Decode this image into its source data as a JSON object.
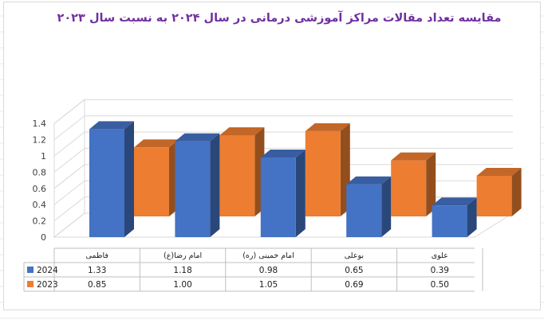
{
  "chart_data": {
    "type": "bar",
    "style": "3d-clustered-column",
    "title": "مقایسه تعداد مقالات مراکز آموزشی درمانی در سال ۲۰۲۴ به نسبت سال ۲۰۲۳",
    "categories": [
      "فاطمی",
      "امام رضا(ع)",
      "امام خمینی (ره)",
      "بوعلی",
      "علوی"
    ],
    "series": [
      {
        "name": "2024",
        "values": [
          "1.33",
          "1.18",
          "0.98",
          "0.65",
          "0.39"
        ],
        "color": "#4472c4"
      },
      {
        "name": "2023",
        "values": [
          "0.85",
          "1.00",
          "1.05",
          "0.69",
          "0.50"
        ],
        "color": "#ed7d31"
      }
    ],
    "yticks": [
      "0",
      "0.2",
      "0.4",
      "0.6",
      "0.8",
      "1",
      "1.2",
      "1.4"
    ],
    "ylim": [
      0,
      1.4
    ],
    "grid": true,
    "legend": "data-table"
  }
}
